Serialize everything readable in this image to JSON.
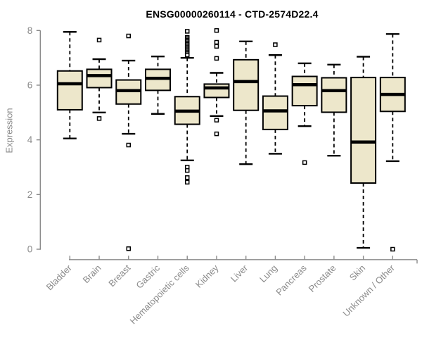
{
  "colors": {
    "box_fill": "#EDE7CB",
    "box_stroke": "#000000",
    "median": "#000000",
    "whisker": "#000000",
    "axis": "#8A8A8A",
    "title": "#000000",
    "background": "#FFFFFF"
  },
  "chart_data": {
    "type": "boxplot",
    "title": "ENSG00000260114 - CTD-2574D22.4",
    "xlabel": "",
    "ylabel": "Expression",
    "ylim": [
      0,
      8
    ],
    "yticks": [
      0,
      2,
      4,
      6,
      8
    ],
    "grid": "off",
    "legend": "none",
    "categories": [
      "Bladder",
      "Brain",
      "Breast",
      "Gastric",
      "Hematopoietic cells",
      "Kidney",
      "Liver",
      "Lung",
      "Pancreas",
      "Prostate",
      "Skin",
      "Unknown / Other"
    ],
    "series": [
      {
        "name": "Bladder",
        "low": 4.05,
        "q1": 5.1,
        "median": 6.05,
        "q3": 6.52,
        "high": 7.95,
        "outliers": []
      },
      {
        "name": "Brain",
        "low": 5.0,
        "q1": 5.91,
        "median": 6.35,
        "q3": 6.58,
        "high": 6.95,
        "outliers": [
          7.65,
          4.78
        ]
      },
      {
        "name": "Breast",
        "low": 4.22,
        "q1": 5.31,
        "median": 5.8,
        "q3": 6.19,
        "high": 6.9,
        "outliers": [
          7.8,
          3.81,
          0.02
        ]
      },
      {
        "name": "Gastric",
        "low": 4.95,
        "q1": 5.81,
        "median": 6.25,
        "q3": 6.58,
        "high": 7.05,
        "outliers": []
      },
      {
        "name": "Hematopoietic cells",
        "low": 3.25,
        "q1": 4.57,
        "median": 5.05,
        "q3": 5.58,
        "high": 7.0,
        "outliers": [
          7.97,
          7.75,
          7.7,
          7.65,
          7.6,
          7.55,
          7.5,
          7.45,
          7.4,
          7.35,
          7.3,
          7.25,
          7.2,
          7.15,
          7.1,
          3.0,
          2.88,
          2.62,
          2.45
        ]
      },
      {
        "name": "Kidney",
        "low": 4.87,
        "q1": 5.55,
        "median": 5.9,
        "q3": 6.04,
        "high": 6.45,
        "outliers": [
          8.0,
          7.57,
          7.42,
          6.98,
          4.72,
          4.22
        ]
      },
      {
        "name": "Liver",
        "low": 3.11,
        "q1": 5.08,
        "median": 6.13,
        "q3": 6.93,
        "high": 7.6,
        "outliers": []
      },
      {
        "name": "Lung",
        "low": 3.49,
        "q1": 4.38,
        "median": 5.06,
        "q3": 5.6,
        "high": 7.1,
        "outliers": [
          7.48
        ]
      },
      {
        "name": "Pancreas",
        "low": 4.5,
        "q1": 5.25,
        "median": 6.02,
        "q3": 6.32,
        "high": 6.8,
        "outliers": [
          3.17
        ]
      },
      {
        "name": "Prostate",
        "low": 3.42,
        "q1": 5.01,
        "median": 5.8,
        "q3": 6.27,
        "high": 6.75,
        "outliers": []
      },
      {
        "name": "Skin",
        "low": 0.05,
        "q1": 2.42,
        "median": 3.92,
        "q3": 6.28,
        "high": 7.04,
        "outliers": []
      },
      {
        "name": "Unknown / Other",
        "low": 3.22,
        "q1": 5.04,
        "median": 5.66,
        "q3": 6.28,
        "high": 7.87,
        "outliers": [
          0.0
        ]
      }
    ]
  }
}
